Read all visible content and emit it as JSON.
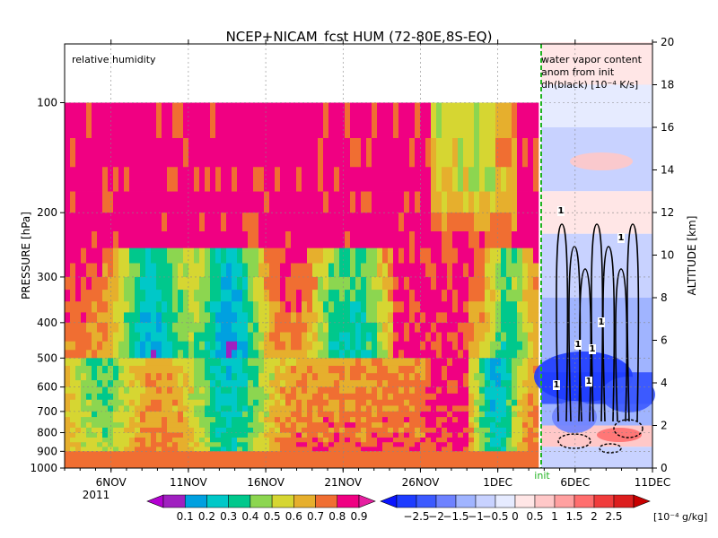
{
  "chart_data": {
    "type": "heatmap",
    "title": "NCEP+NICAM_fcst HUM (72-80E,8S-EQ)",
    "annotation_left": "relative humidity",
    "annotation_right": [
      "water vapor content",
      "anom from init",
      "dh(black) [10⁻⁴ K/s]"
    ],
    "ylabel_left": "PRESSURE [hPa]",
    "ylabel_right": "ALTITUDE [km]",
    "x_ticks": [
      "6NOV",
      "11NOV",
      "16NOV",
      "21NOV",
      "26NOV",
      "1DEC",
      "6DEC",
      "11DEC"
    ],
    "x_year": "2011",
    "init_label": "init",
    "y_ticks_left": [
      "100",
      "200",
      "300",
      "400",
      "500",
      "600",
      "700",
      "800",
      "900",
      "1000"
    ],
    "y_ticks_right": [
      "0",
      "2",
      "4",
      "6",
      "8",
      "10",
      "12",
      "14",
      "16",
      "18",
      "20"
    ],
    "contour_label": "1",
    "x_range_days": [
      "3NOV",
      "11DEC"
    ],
    "pressure_range_hpa": [
      100,
      1000
    ],
    "altitude_range_km": [
      0,
      20
    ],
    "colorbar_left": {
      "labels": [
        "0.1",
        "0.2",
        "0.3",
        "0.4",
        "0.5",
        "0.6",
        "0.7",
        "0.8",
        "0.9"
      ],
      "colors": [
        "#a020c0",
        "#00a0e0",
        "#00c8c8",
        "#00c88c",
        "#8cd650",
        "#d6d632",
        "#e6af2d",
        "#f06e32",
        "#f00082"
      ]
    },
    "colorbar_right": {
      "labels": [
        "−2.5",
        "−2",
        "−1.5",
        "−1",
        "−0.5",
        "0",
        "0.5",
        "1",
        "1.5",
        "2",
        "2.5"
      ],
      "unit": "[10⁻⁴ g/kg]",
      "colors": [
        "#1e3cff",
        "#3c5aff",
        "#6e82ff",
        "#a0b4ff",
        "#c8d2ff",
        "#e6ebff",
        "#ffe6e6",
        "#ffc8c8",
        "#ffa0a0",
        "#ff6e6e",
        "#f03c3c",
        "#dc1e1e"
      ]
    },
    "regime_notes": {
      "upper_troposphere": "mostly humid (>0.9) above ~250 hPa except 27NOV-2DEC",
      "mid_troposphere_dry": "drier zones (0.3-0.5) around 300-500 hPa near 8NOV, 12NOV, 21NOV, 30NOV"
    }
  }
}
